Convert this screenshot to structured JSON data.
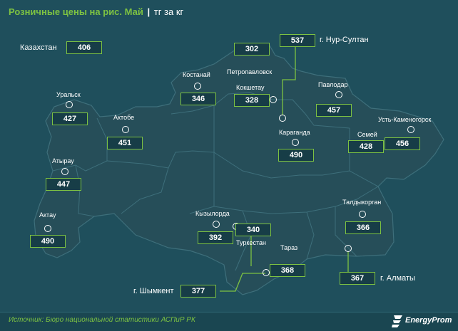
{
  "header": {
    "title": "Розничные цены на рис. Май",
    "separator": "|",
    "unit": "тг за кг"
  },
  "colors": {
    "background": "#1f4f5c",
    "map_fill": "#264e59",
    "accent_green": "#7dc242",
    "text": "#ffffff"
  },
  "country": {
    "name": "Казахстан",
    "price": "406"
  },
  "regions": [
    {
      "id": "nur-sultan",
      "name": "г. Нур-Султан",
      "price": "537"
    },
    {
      "id": "petropavlovsk",
      "name": "Петропавловск",
      "price": "302"
    },
    {
      "id": "kostanay",
      "name": "Костанай",
      "price": "346"
    },
    {
      "id": "kokshetau",
      "name": "Кокшетау",
      "price": "328"
    },
    {
      "id": "pavlodar",
      "name": "Павлодар",
      "price": "457"
    },
    {
      "id": "uralsk",
      "name": "Уральск",
      "price": "427"
    },
    {
      "id": "aktobe",
      "name": "Актобе",
      "price": "451"
    },
    {
      "id": "karaganda",
      "name": "Караганда",
      "price": "490"
    },
    {
      "id": "semey",
      "name": "Семей",
      "price": "428"
    },
    {
      "id": "ust-kamenogorsk",
      "name": "Усть-Каменогорск",
      "price": "456"
    },
    {
      "id": "atyrau",
      "name": "Атырау",
      "price": "447"
    },
    {
      "id": "aktau",
      "name": "Актау",
      "price": "490"
    },
    {
      "id": "kyzylorda",
      "name": "Кызылорда",
      "price": "392"
    },
    {
      "id": "turkestan",
      "name": "Туркестан",
      "price": "340"
    },
    {
      "id": "taraz",
      "name": "Тараз",
      "price": "368"
    },
    {
      "id": "taldykorgan",
      "name": "Талдыкорган",
      "price": "366"
    },
    {
      "id": "almaty",
      "name": "г. Алматы",
      "price": "367"
    },
    {
      "id": "shymkent",
      "name": "г. Шымкент",
      "price": "377"
    }
  ],
  "footer": {
    "source": "Источник: Бюро национальной статистики АСПиР РК",
    "logo_text": "EnergyProm"
  }
}
